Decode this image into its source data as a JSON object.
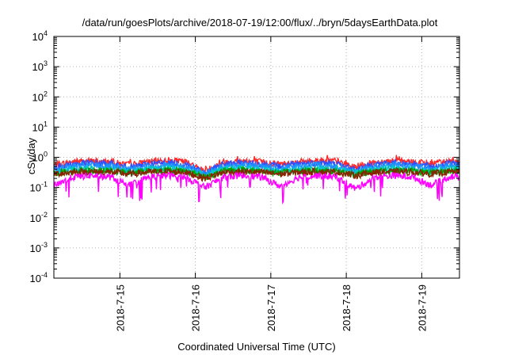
{
  "chart_data": {
    "type": "line",
    "title": "/data/run/goesPlots/archive/2018-07-19/12:00/flux/../bryn/5daysEarthData.plot",
    "xlabel": "Coordinated Universal Time (UTC)",
    "ylabel": "cSv/day",
    "yscale": "log",
    "ylim": [
      0.0001,
      10000
    ],
    "xlim": [
      "2018-07-14 03:00",
      "2018-07-19 12:00"
    ],
    "grid": true,
    "legend": "none",
    "y_ticks": [
      {
        "base": "10",
        "exp": "-4"
      },
      {
        "base": "10",
        "exp": "-3"
      },
      {
        "base": "10",
        "exp": "-2"
      },
      {
        "base": "10",
        "exp": "-1"
      },
      {
        "base": "10",
        "exp": "0"
      },
      {
        "base": "10",
        "exp": "1"
      },
      {
        "base": "10",
        "exp": "2"
      },
      {
        "base": "10",
        "exp": "3"
      },
      {
        "base": "10",
        "exp": "4"
      }
    ],
    "x_ticks": [
      "2018-7-15",
      "2018-7-16",
      "2018-7-17",
      "2018-7-18",
      "2018-7-19"
    ],
    "x": [
      "2018-07-14 03:00",
      "2018-07-14 09:00",
      "2018-07-14 15:00",
      "2018-07-14 21:00",
      "2018-07-15 03:00",
      "2018-07-15 09:00",
      "2018-07-15 15:00",
      "2018-07-15 21:00",
      "2018-07-16 03:00",
      "2018-07-16 09:00",
      "2018-07-16 15:00",
      "2018-07-16 21:00",
      "2018-07-17 03:00",
      "2018-07-17 09:00",
      "2018-07-17 15:00",
      "2018-07-17 21:00",
      "2018-07-18 03:00",
      "2018-07-18 09:00",
      "2018-07-18 15:00",
      "2018-07-18 21:00",
      "2018-07-19 03:00",
      "2018-07-19 09:00",
      "2018-07-19 12:00"
    ],
    "series": [
      {
        "color": "#ff2a2a",
        "values": [
          0.55,
          0.7,
          0.75,
          0.7,
          0.55,
          0.7,
          0.8,
          0.7,
          0.35,
          0.7,
          0.75,
          0.7,
          0.6,
          0.7,
          0.8,
          0.75,
          0.45,
          0.7,
          0.75,
          0.7,
          0.6,
          0.75,
          0.7
        ]
      },
      {
        "color": "#2f4fff",
        "values": [
          0.45,
          0.6,
          0.65,
          0.6,
          0.45,
          0.6,
          0.65,
          0.6,
          0.3,
          0.6,
          0.65,
          0.6,
          0.5,
          0.6,
          0.65,
          0.6,
          0.38,
          0.6,
          0.65,
          0.6,
          0.5,
          0.62,
          0.6
        ]
      },
      {
        "color": "#1e90ff",
        "values": [
          0.4,
          0.5,
          0.55,
          0.5,
          0.4,
          0.5,
          0.55,
          0.5,
          0.28,
          0.5,
          0.55,
          0.5,
          0.42,
          0.5,
          0.55,
          0.5,
          0.33,
          0.5,
          0.55,
          0.5,
          0.42,
          0.52,
          0.5
        ]
      },
      {
        "color": "#00c8c8",
        "values": [
          0.33,
          0.4,
          0.42,
          0.4,
          0.33,
          0.4,
          0.43,
          0.4,
          0.25,
          0.4,
          0.43,
          0.4,
          0.35,
          0.4,
          0.43,
          0.4,
          0.3,
          0.4,
          0.43,
          0.4,
          0.35,
          0.42,
          0.4
        ]
      },
      {
        "color": "#00a000",
        "values": [
          0.3,
          0.35,
          0.37,
          0.35,
          0.3,
          0.35,
          0.37,
          0.35,
          0.22,
          0.35,
          0.37,
          0.35,
          0.3,
          0.35,
          0.37,
          0.35,
          0.27,
          0.35,
          0.37,
          0.35,
          0.3,
          0.36,
          0.35
        ]
      },
      {
        "color": "#8b2200",
        "values": [
          0.28,
          0.32,
          0.33,
          0.32,
          0.28,
          0.32,
          0.33,
          0.32,
          0.2,
          0.32,
          0.33,
          0.32,
          0.28,
          0.32,
          0.33,
          0.32,
          0.25,
          0.32,
          0.33,
          0.32,
          0.28,
          0.33,
          0.32
        ]
      },
      {
        "color": "#ff00ff",
        "values": [
          0.12,
          0.22,
          0.25,
          0.22,
          0.12,
          0.22,
          0.25,
          0.22,
          0.1,
          0.22,
          0.25,
          0.22,
          0.11,
          0.22,
          0.25,
          0.22,
          0.09,
          0.22,
          0.25,
          0.22,
          0.12,
          0.23,
          0.22
        ]
      }
    ]
  }
}
